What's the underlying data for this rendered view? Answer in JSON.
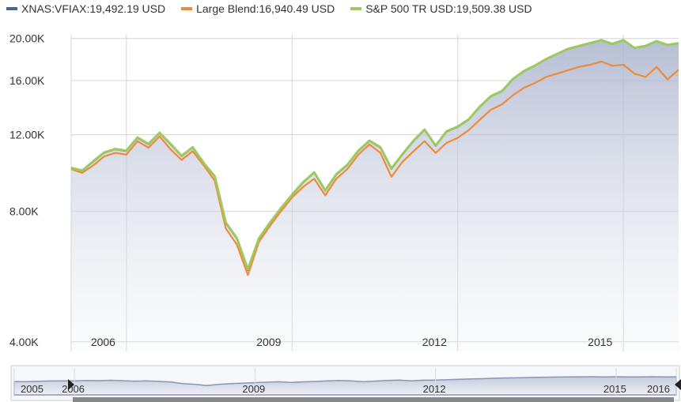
{
  "legend": {
    "items": [
      {
        "label": "XNAS:VFIAX:19,492.19 USD",
        "color": "#4a6491"
      },
      {
        "label": "Large Blend:16,940.49 USD",
        "color": "#ef8a3c"
      },
      {
        "label": "S&P 500 TR USD:19,509.38 USD",
        "color": "#9dca60"
      }
    ]
  },
  "chart_data": {
    "type": "line",
    "title": "",
    "xlabel": "",
    "ylabel": "",
    "y_scale": "log",
    "ylim": [
      3800,
      20400
    ],
    "xlim": [
      2005.0,
      2016.0
    ],
    "y_ticks": [
      {
        "value": 20000,
        "label": "20.00K"
      },
      {
        "value": 16000,
        "label": "16.00K"
      },
      {
        "value": 12000,
        "label": "12.00K"
      },
      {
        "value": 8000,
        "label": "8.00K"
      },
      {
        "value": 4000,
        "label": "4.00K"
      }
    ],
    "x_ticks": [
      {
        "value": 2006.0,
        "label": "2006"
      },
      {
        "value": 2009.0,
        "label": "2009"
      },
      {
        "value": 2012.0,
        "label": "2012"
      },
      {
        "value": 2015.0,
        "label": "2015"
      }
    ],
    "grid": true,
    "legend_position": "top-left",
    "x": [
      2005.0,
      2005.2,
      2005.4,
      2005.6,
      2005.8,
      2006.0,
      2006.2,
      2006.4,
      2006.6,
      2006.8,
      2007.0,
      2007.2,
      2007.4,
      2007.6,
      2007.8,
      2008.0,
      2008.2,
      2008.4,
      2008.6,
      2008.8,
      2009.0,
      2009.2,
      2009.4,
      2009.6,
      2009.8,
      2010.0,
      2010.2,
      2010.4,
      2010.6,
      2010.8,
      2011.0,
      2011.2,
      2011.4,
      2011.6,
      2011.8,
      2012.0,
      2012.2,
      2012.4,
      2012.6,
      2012.8,
      2013.0,
      2013.2,
      2013.4,
      2013.6,
      2013.8,
      2014.0,
      2014.2,
      2014.4,
      2014.6,
      2014.8,
      2015.0,
      2015.2,
      2015.4,
      2015.6,
      2015.8,
      2016.0
    ],
    "series": [
      {
        "name": "XNAS:VFIAX:19,492.19 USD",
        "values": [
          10050,
          9900,
          10400,
          10900,
          11100,
          11000,
          11800,
          11400,
          12100,
          11400,
          10700,
          11200,
          10300,
          9600,
          7500,
          6900,
          5850,
          6900,
          7500,
          8100,
          8700,
          9300,
          9800,
          8900,
          9700,
          10200,
          11000,
          11600,
          11200,
          10000,
          10800,
          11600,
          12300,
          11300,
          12200,
          12500,
          13000,
          13900,
          14700,
          15100,
          16100,
          16800,
          17300,
          17900,
          18400,
          18900,
          19200,
          19500,
          19800,
          19400,
          19800,
          19000,
          19200,
          19700,
          19300,
          19490
        ]
      },
      {
        "name": "Large Blend:16,940.49 USD",
        "values": [
          10000,
          9800,
          10200,
          10700,
          10900,
          10800,
          11600,
          11200,
          11900,
          11100,
          10500,
          11000,
          10200,
          9400,
          7300,
          6700,
          5700,
          6800,
          7400,
          8000,
          8600,
          9100,
          9500,
          8700,
          9500,
          10000,
          10800,
          11400,
          10900,
          9600,
          10400,
          11000,
          11600,
          10900,
          11500,
          11800,
          12300,
          13000,
          13700,
          14100,
          14800,
          15400,
          15800,
          16300,
          16600,
          16900,
          17200,
          17400,
          17700,
          17300,
          17400,
          16600,
          16300,
          17200,
          16100,
          16940
        ]
      },
      {
        "name": "S&P 500 TR USD:19,509.38 USD",
        "values": [
          10070,
          9920,
          10430,
          10930,
          11130,
          11030,
          11830,
          11430,
          12130,
          11430,
          10730,
          11230,
          10330,
          9630,
          7530,
          6930,
          5880,
          6930,
          7530,
          8130,
          8730,
          9330,
          9830,
          8930,
          9730,
          10230,
          11030,
          11630,
          11230,
          10030,
          10830,
          11630,
          12330,
          11330,
          12230,
          12530,
          13030,
          13930,
          14730,
          15130,
          16130,
          16830,
          17330,
          17930,
          18430,
          18930,
          19230,
          19530,
          19830,
          19430,
          19830,
          19030,
          19230,
          19730,
          19330,
          19509
        ]
      }
    ]
  },
  "navigator": {
    "labels": [
      {
        "value": 2005.0,
        "label": "2005"
      },
      {
        "value": 2006.0,
        "label": "2006"
      },
      {
        "value": 2009.0,
        "label": "2009"
      },
      {
        "value": 2012.0,
        "label": "2012"
      },
      {
        "value": 2015.0,
        "label": "2015"
      },
      {
        "value": 2016.0,
        "label": "2016"
      }
    ]
  }
}
